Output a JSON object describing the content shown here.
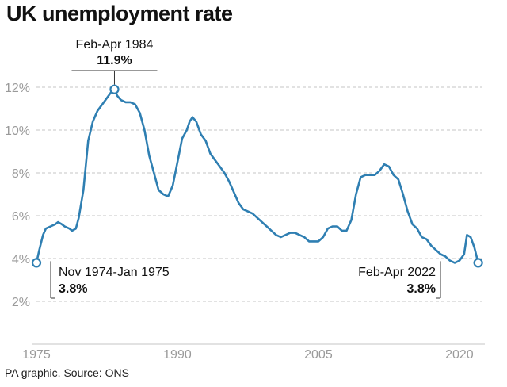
{
  "chart_data": {
    "type": "line",
    "title": "UK unemployment rate",
    "source": "PA graphic. Source: ONS",
    "x_tick_labels": [
      "1975",
      "1990",
      "2005",
      "2020"
    ],
    "x_ticks": [
      1975,
      1990,
      2005,
      2020
    ],
    "y_tick_labels": [
      "2%",
      "4%",
      "6%",
      "8%",
      "10%",
      "12%"
    ],
    "y_ticks": [
      2,
      4,
      6,
      8,
      10,
      12
    ],
    "xlim": [
      1975,
      2022.2
    ],
    "ylim": [
      0,
      13.5
    ],
    "grid": "horizontal-dashed",
    "series": [
      {
        "name": "UK unemployment rate (%)",
        "color": "#2f7fb2",
        "points": [
          [
            1975.0,
            3.8
          ],
          [
            1975.3,
            4.4
          ],
          [
            1975.7,
            5.1
          ],
          [
            1976.0,
            5.4
          ],
          [
            1976.5,
            5.5
          ],
          [
            1977.0,
            5.6
          ],
          [
            1977.3,
            5.7
          ],
          [
            1977.7,
            5.6
          ],
          [
            1978.0,
            5.5
          ],
          [
            1978.5,
            5.4
          ],
          [
            1978.8,
            5.3
          ],
          [
            1979.2,
            5.4
          ],
          [
            1979.5,
            5.9
          ],
          [
            1980.0,
            7.2
          ],
          [
            1980.5,
            9.5
          ],
          [
            1981.0,
            10.4
          ],
          [
            1981.5,
            10.9
          ],
          [
            1982.0,
            11.2
          ],
          [
            1982.5,
            11.5
          ],
          [
            1983.0,
            11.8
          ],
          [
            1983.3,
            11.9
          ],
          [
            1983.6,
            11.6
          ],
          [
            1984.0,
            11.4
          ],
          [
            1984.5,
            11.3
          ],
          [
            1985.0,
            11.3
          ],
          [
            1985.5,
            11.2
          ],
          [
            1986.0,
            10.8
          ],
          [
            1986.5,
            10.0
          ],
          [
            1987.0,
            8.8
          ],
          [
            1987.5,
            8.0
          ],
          [
            1988.0,
            7.2
          ],
          [
            1988.5,
            7.0
          ],
          [
            1989.0,
            6.9
          ],
          [
            1989.5,
            7.4
          ],
          [
            1990.0,
            8.5
          ],
          [
            1990.5,
            9.6
          ],
          [
            1991.0,
            10.0
          ],
          [
            1991.3,
            10.4
          ],
          [
            1991.6,
            10.6
          ],
          [
            1992.0,
            10.4
          ],
          [
            1992.5,
            9.8
          ],
          [
            1993.0,
            9.5
          ],
          [
            1993.5,
            8.9
          ],
          [
            1994.0,
            8.6
          ],
          [
            1994.5,
            8.3
          ],
          [
            1995.0,
            8.0
          ],
          [
            1995.5,
            7.6
          ],
          [
            1996.0,
            7.1
          ],
          [
            1996.5,
            6.6
          ],
          [
            1997.0,
            6.3
          ],
          [
            1997.5,
            6.2
          ],
          [
            1998.0,
            6.1
          ],
          [
            1998.5,
            5.9
          ],
          [
            1999.0,
            5.7
          ],
          [
            1999.5,
            5.5
          ],
          [
            2000.0,
            5.3
          ],
          [
            2000.5,
            5.1
          ],
          [
            2001.0,
            5.0
          ],
          [
            2001.5,
            5.1
          ],
          [
            2002.0,
            5.2
          ],
          [
            2002.5,
            5.2
          ],
          [
            2003.0,
            5.1
          ],
          [
            2003.5,
            5.0
          ],
          [
            2004.0,
            4.8
          ],
          [
            2004.5,
            4.8
          ],
          [
            2005.0,
            4.8
          ],
          [
            2005.5,
            5.0
          ],
          [
            2006.0,
            5.4
          ],
          [
            2006.5,
            5.5
          ],
          [
            2007.0,
            5.5
          ],
          [
            2007.5,
            5.3
          ],
          [
            2008.0,
            5.3
          ],
          [
            2008.5,
            5.8
          ],
          [
            2009.0,
            7.0
          ],
          [
            2009.5,
            7.8
          ],
          [
            2010.0,
            7.9
          ],
          [
            2010.5,
            7.9
          ],
          [
            2011.0,
            7.9
          ],
          [
            2011.5,
            8.1
          ],
          [
            2012.0,
            8.4
          ],
          [
            2012.5,
            8.3
          ],
          [
            2013.0,
            7.9
          ],
          [
            2013.5,
            7.7
          ],
          [
            2014.0,
            7.0
          ],
          [
            2014.5,
            6.2
          ],
          [
            2015.0,
            5.6
          ],
          [
            2015.5,
            5.4
          ],
          [
            2016.0,
            5.0
          ],
          [
            2016.5,
            4.9
          ],
          [
            2017.0,
            4.6
          ],
          [
            2017.5,
            4.4
          ],
          [
            2018.0,
            4.2
          ],
          [
            2018.5,
            4.1
          ],
          [
            2019.0,
            3.9
          ],
          [
            2019.5,
            3.8
          ],
          [
            2020.0,
            3.9
          ],
          [
            2020.5,
            4.2
          ],
          [
            2020.8,
            5.1
          ],
          [
            2021.2,
            5.0
          ],
          [
            2021.6,
            4.5
          ],
          [
            2022.0,
            3.8
          ]
        ]
      }
    ],
    "annotations": [
      {
        "label": "Feb-Apr 1984",
        "value": "11.9%",
        "x": 1983.3,
        "y": 11.9,
        "placement": "above"
      },
      {
        "label": "Nov 1974-Jan 1975",
        "value": "3.8%",
        "x": 1975.0,
        "y": 3.8,
        "placement": "lower-right"
      },
      {
        "label": "Feb-Apr 2022",
        "value": "3.8%",
        "x": 2022.0,
        "y": 3.8,
        "placement": "lower-left"
      }
    ]
  }
}
